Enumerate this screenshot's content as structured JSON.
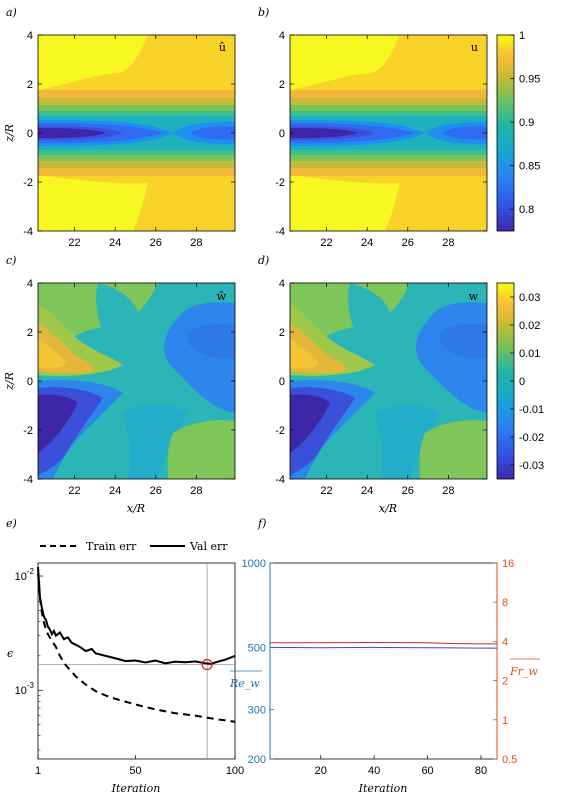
{
  "chart_data": [
    {
      "type": "heatmap",
      "panel_label": "a)",
      "title": "û",
      "xlabel": "",
      "ylabel": "z/R",
      "xlim": [
        20.2,
        29.9
      ],
      "ylim": [
        -4,
        4
      ],
      "xticks": [
        "22",
        "24",
        "26",
        "28"
      ],
      "yticks": [
        "4",
        "2",
        "0",
        "-2",
        "-4"
      ],
      "field": "mean streamwise velocity (prediction)"
    },
    {
      "type": "heatmap",
      "panel_label": "b)",
      "title": "u",
      "xlabel": "",
      "ylabel": "",
      "xlim": [
        20.2,
        29.9
      ],
      "ylim": [
        -4,
        4
      ],
      "xticks": [
        "22",
        "24",
        "26",
        "28"
      ],
      "yticks": [
        "4",
        "2",
        "0",
        "-2",
        "-4"
      ],
      "colorbar": {
        "ticks": [
          "1",
          "0.95",
          "0.9",
          "0.85",
          "0.8"
        ],
        "range": [
          0.775,
          1.0
        ]
      }
    },
    {
      "type": "heatmap",
      "panel_label": "c)",
      "title": "ŵ",
      "xlabel": "x/R",
      "ylabel": "z/R",
      "xlim": [
        20.2,
        29.9
      ],
      "ylim": [
        -4,
        4
      ],
      "xticks": [
        "22",
        "24",
        "26",
        "28"
      ],
      "yticks": [
        "4",
        "2",
        "0",
        "-2",
        "-4"
      ]
    },
    {
      "type": "heatmap",
      "panel_label": "d)",
      "title": "w",
      "xlabel": "x/R",
      "ylabel": "",
      "xlim": [
        20.2,
        29.9
      ],
      "ylim": [
        -4,
        4
      ],
      "xticks": [
        "22",
        "24",
        "26",
        "28"
      ],
      "yticks": [
        "4",
        "2",
        "0",
        "-2",
        "-4"
      ],
      "colorbar": {
        "ticks": [
          "0.03",
          "0.02",
          "0.01",
          "0",
          "-0.01",
          "-0.02",
          "-0.03"
        ],
        "range": [
          -0.035,
          0.035
        ]
      }
    },
    {
      "type": "line",
      "panel_label": "e)",
      "xlabel": "Iteration",
      "ylabel": "ϵ",
      "yscale": "log",
      "xlim": [
        1,
        100
      ],
      "ylim": [
        0.00025,
        0.013
      ],
      "xticks": [
        "1",
        "50",
        "100"
      ],
      "yticks": [
        {
          "label": "10",
          "exp": "-2",
          "value": 0.01
        },
        {
          "label": "10",
          "exp": "-3",
          "value": 0.001
        }
      ],
      "legend": [
        "Train err",
        "Val err"
      ],
      "marker_iteration": 86,
      "marker_value": 0.00168,
      "series": [
        {
          "name": "Train err",
          "style": "dashed",
          "x": [
            1,
            2,
            3,
            4,
            5,
            6,
            8,
            10,
            12,
            15,
            18,
            20,
            25,
            30,
            35,
            40,
            50,
            60,
            70,
            80,
            90,
            100
          ],
          "y": [
            0.0105,
            0.0064,
            0.0047,
            0.0039,
            0.0034,
            0.0031,
            0.0027,
            0.0024,
            0.002,
            0.00165,
            0.00145,
            0.00132,
            0.00112,
            0.00098,
            0.0009,
            0.00084,
            0.00075,
            0.00068,
            0.00063,
            0.0006,
            0.00056,
            0.00053
          ]
        },
        {
          "name": "Val err",
          "style": "solid",
          "x": [
            1,
            2,
            3,
            4,
            5,
            6,
            7,
            8,
            9,
            10,
            12,
            14,
            16,
            18,
            20,
            22,
            25,
            28,
            30,
            35,
            40,
            45,
            50,
            55,
            60,
            65,
            70,
            75,
            80,
            85,
            88,
            90,
            95,
            100
          ],
          "y": [
            0.012,
            0.0065,
            0.0052,
            0.0044,
            0.0041,
            0.0036,
            0.0034,
            0.0031,
            0.0033,
            0.003,
            0.0032,
            0.0028,
            0.0029,
            0.0026,
            0.0025,
            0.0024,
            0.0022,
            0.0023,
            0.0021,
            0.002,
            0.0019,
            0.0018,
            0.00182,
            0.00175,
            0.00182,
            0.00172,
            0.00178,
            0.00176,
            0.00179,
            0.00172,
            0.0017,
            0.00175,
            0.00185,
            0.002
          ]
        }
      ]
    },
    {
      "type": "line",
      "panel_label": "f)",
      "xlabel": "Iteration",
      "xlim": [
        1,
        86
      ],
      "xticks": [
        "20",
        "40",
        "60",
        "80"
      ],
      "left_axis": {
        "label": "Re_w",
        "scale": "log",
        "lim": [
          200,
          1000
        ],
        "ticks": [
          "1000",
          "500",
          "300",
          "200"
        ],
        "color": "#1f77b4"
      },
      "right_axis": {
        "label": "Fr_w",
        "scale": "log",
        "lim": [
          0.5,
          16
        ],
        "ticks": [
          "16",
          "8",
          "4",
          "2",
          "1",
          "0.5"
        ],
        "color": "#d95319"
      },
      "series": [
        {
          "name": "Re_w",
          "axis": "left",
          "color": "#3b4cc0",
          "x": [
            1,
            20,
            40,
            60,
            70,
            80,
            86
          ],
          "y": [
            500,
            499,
            500,
            499,
            498,
            497,
            497
          ]
        },
        {
          "name": "Fr_w",
          "axis": "right",
          "color": "#d62728",
          "x": [
            1,
            20,
            40,
            60,
            70,
            80,
            86
          ],
          "y": [
            3.9,
            3.9,
            3.92,
            3.9,
            3.85,
            3.83,
            3.83
          ]
        }
      ]
    }
  ]
}
